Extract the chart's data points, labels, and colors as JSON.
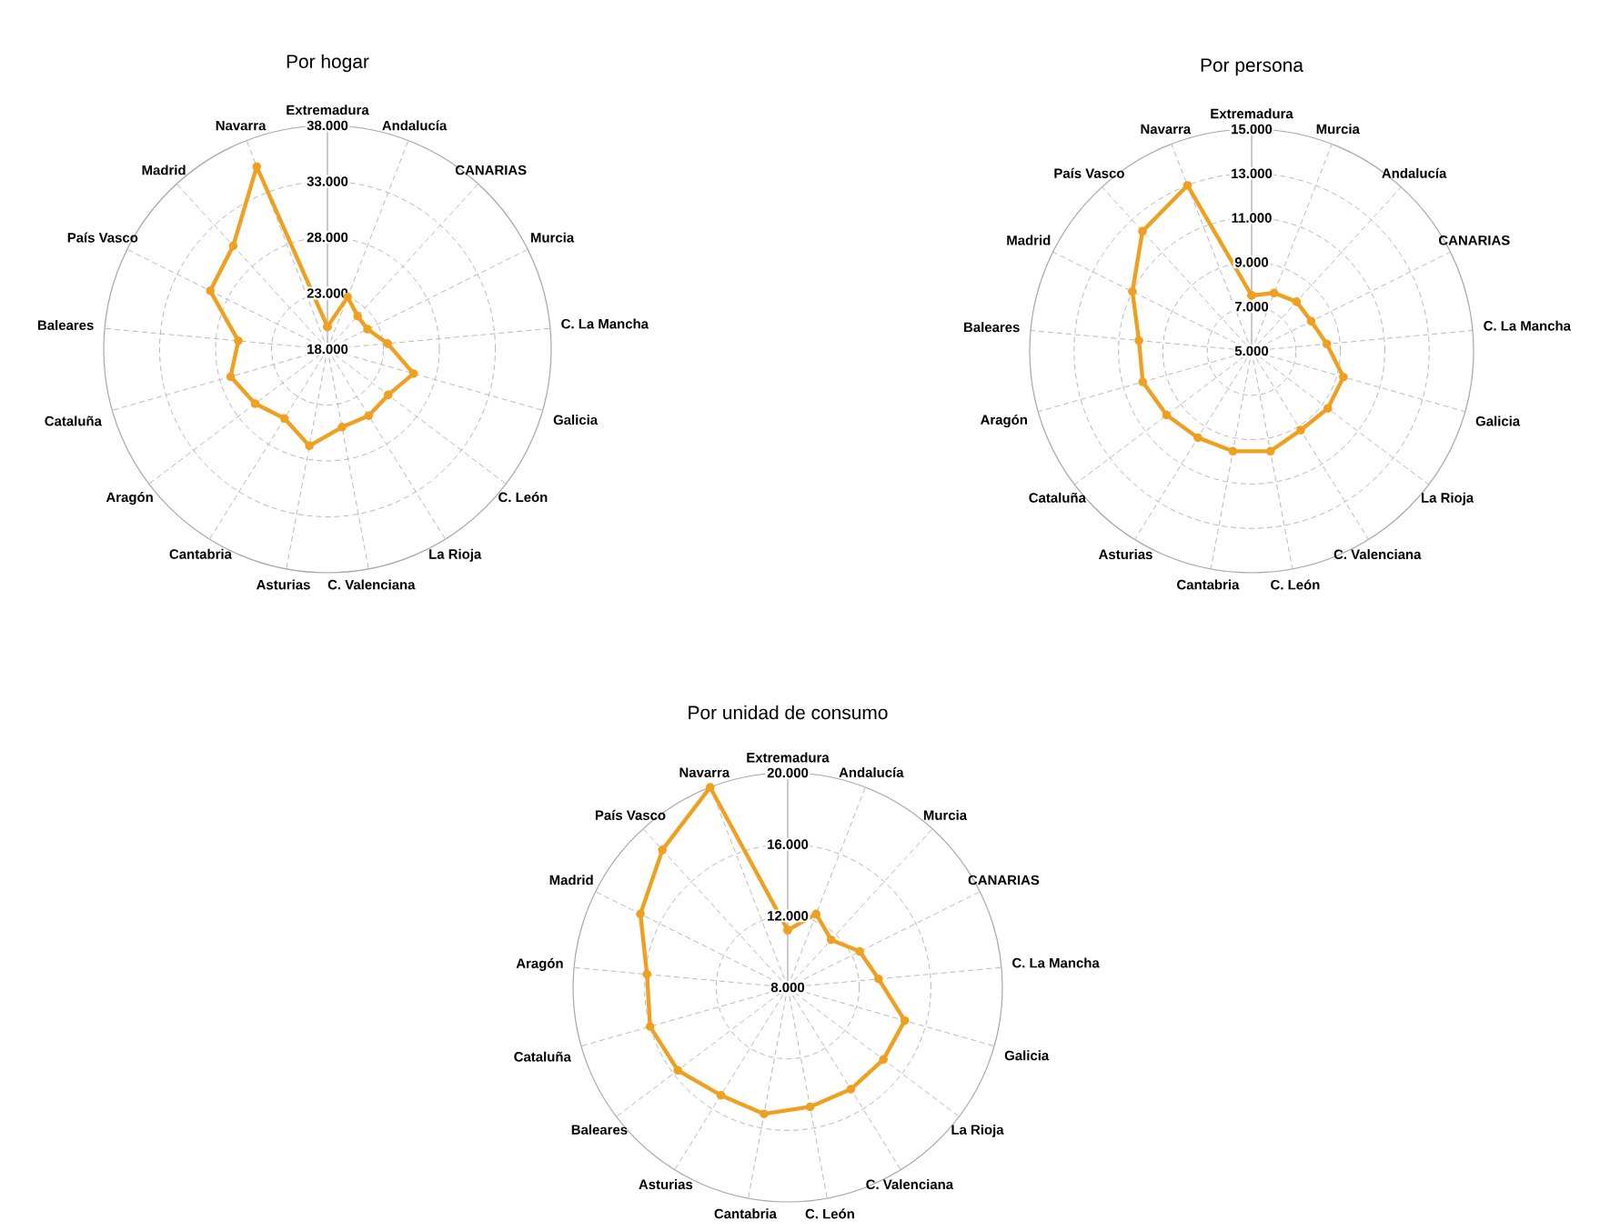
{
  "chart_data": [
    {
      "type": "radar",
      "title": "Por hogar",
      "categories": [
        "Extremadura",
        "Andalucía",
        "CANARIAS",
        "Murcia",
        "C. La Mancha",
        "Galicia",
        "C. León",
        "La Rioja",
        "C. Valenciana",
        "Asturias",
        "Cantabria",
        "Aragón",
        "Cataluña",
        "Baleares",
        "País Vasco",
        "Madrid",
        "Navarra"
      ],
      "series": [
        {
          "color": "#f0a020",
          "values": [
            20000,
            23000,
            22000,
            22000,
            23400,
            26000,
            24800,
            25000,
            25100,
            26800,
            25300,
            26100,
            27000,
            26000,
            29700,
            30500,
            35500
          ]
        }
      ],
      "ylim": [
        18000,
        38000
      ],
      "yticks": [
        {
          "value": 18000,
          "label": "18.000"
        },
        {
          "value": 23000,
          "label": "23.000"
        },
        {
          "value": 28000,
          "label": "28.000"
        },
        {
          "value": 33000,
          "label": "33.000"
        },
        {
          "value": 38000,
          "label": "38.000"
        }
      ],
      "grid": true,
      "marker": "circle",
      "line_style": "solid"
    },
    {
      "type": "radar",
      "title": "Por persona",
      "categories": [
        "Extremadura",
        "Murcia",
        "Andalucía",
        "CANARIAS",
        "C. La Mancha",
        "Galicia",
        "La Rioja",
        "C. Valenciana",
        "C. León",
        "Cantabria",
        "Asturias",
        "Cataluña",
        "Aragón",
        "Baleares",
        "Madrid",
        "País Vasco",
        "Navarra"
      ],
      "series": [
        {
          "color": "#f0a020",
          "values": [
            7500,
            7800,
            8000,
            8000,
            8400,
            9300,
            9300,
            9200,
            9600,
            9600,
            9600,
            9800,
            10100,
            10100,
            11000,
            12300,
            13000
          ]
        }
      ],
      "ylim": [
        5000,
        15000
      ],
      "yticks": [
        {
          "value": 5000,
          "label": "5.000"
        },
        {
          "value": 7000,
          "label": "7.000"
        },
        {
          "value": 9000,
          "label": "9.000"
        },
        {
          "value": 11000,
          "label": "11.000"
        },
        {
          "value": 13000,
          "label": "13.000"
        },
        {
          "value": 15000,
          "label": "15.000"
        }
      ],
      "grid": true,
      "marker": "circle",
      "line_style": "solid"
    },
    {
      "type": "radar",
      "title": "Por unidad de consumo",
      "categories": [
        "Extremadura",
        "Andalucía",
        "Murcia",
        "CANARIAS",
        "C. La Mancha",
        "Galicia",
        "La Rioja",
        "C. Valenciana",
        "C. León",
        "Cantabria",
        "Asturias",
        "Baleares",
        "Cataluña",
        "Aragón",
        "Madrid",
        "País Vasco",
        "Navarra"
      ],
      "series": [
        {
          "color": "#f0a020",
          "values": [
            11200,
            12400,
            11600,
            12500,
            13100,
            14800,
            14700,
            14700,
            14800,
            15200,
            15100,
            15700,
            16000,
            15900,
            17200,
            18400,
            20000
          ]
        }
      ],
      "ylim": [
        8000,
        20000
      ],
      "yticks": [
        {
          "value": 8000,
          "label": "8.000"
        },
        {
          "value": 12000,
          "label": "12.000"
        },
        {
          "value": 16000,
          "label": "16.000"
        },
        {
          "value": 20000,
          "label": "20.000"
        }
      ],
      "grid": true,
      "marker": "circle",
      "line_style": "solid"
    }
  ]
}
